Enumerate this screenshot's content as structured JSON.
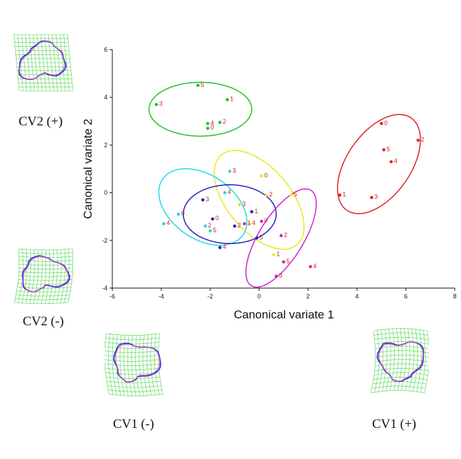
{
  "chart_data": {
    "type": "scatter",
    "title": "",
    "xlabel": "Canonical variate 1",
    "ylabel": "Canonical variate 2",
    "xlim": [
      -6,
      8
    ],
    "ylim": [
      -4,
      6
    ],
    "xticks": [
      "-6",
      "-4",
      "-2",
      "0",
      "2",
      "4",
      "6",
      "8"
    ],
    "yticks": [
      "-4",
      "-2",
      "0",
      "2",
      "4",
      "6"
    ],
    "grid": false,
    "series": [
      {
        "name": "green",
        "color": "#22c022",
        "ellipse": {
          "cx": -2.4,
          "cy": 3.5,
          "rx": 2.1,
          "ry": 1.1,
          "angle": 0
        },
        "points": [
          {
            "x": -4.2,
            "y": 3.7,
            "label": "3"
          },
          {
            "x": -2.5,
            "y": 4.5,
            "label": "5"
          },
          {
            "x": -1.3,
            "y": 3.9,
            "label": "1"
          },
          {
            "x": -2.1,
            "y": 2.9,
            "label": "4"
          },
          {
            "x": -1.6,
            "y": 2.95,
            "label": "2"
          },
          {
            "x": -2.1,
            "y": 2.7,
            "label": "0"
          }
        ]
      },
      {
        "name": "red",
        "color": "#e02020",
        "ellipse": {
          "cx": 4.9,
          "cy": 1.2,
          "rx": 2.3,
          "ry": 1.3,
          "angle": 55
        },
        "points": [
          {
            "x": 5.0,
            "y": 2.9,
            "label": "0"
          },
          {
            "x": 6.5,
            "y": 2.2,
            "label": "2"
          },
          {
            "x": 5.1,
            "y": 1.8,
            "label": "5"
          },
          {
            "x": 5.4,
            "y": 1.3,
            "label": "4"
          },
          {
            "x": 3.3,
            "y": -0.1,
            "label": "1"
          },
          {
            "x": 4.6,
            "y": -0.2,
            "label": "3"
          }
        ]
      },
      {
        "name": "yellow",
        "color": "#e8e820",
        "ellipse": {
          "cx": 0.0,
          "cy": -0.3,
          "rx": 2.4,
          "ry": 1.3,
          "angle": -50
        },
        "points": [
          {
            "x": -0.8,
            "y": -0.5,
            "label": "3"
          },
          {
            "x": 0.1,
            "y": 0.7,
            "label": "0"
          },
          {
            "x": 0.3,
            "y": -0.1,
            "label": "2"
          },
          {
            "x": 1.3,
            "y": -0.1,
            "label": "5"
          },
          {
            "x": 0.6,
            "y": -2.6,
            "label": "1"
          },
          {
            "x": -0.4,
            "y": -1.3,
            "label": "4"
          }
        ]
      },
      {
        "name": "cyan",
        "color": "#20d8e8",
        "ellipse": {
          "cx": -2.3,
          "cy": -0.6,
          "rx": 2.0,
          "ry": 1.3,
          "angle": -35
        },
        "points": [
          {
            "x": -1.2,
            "y": 0.9,
            "label": "3"
          },
          {
            "x": -1.4,
            "y": 0.0,
            "label": "4"
          },
          {
            "x": -3.3,
            "y": -0.9,
            "label": "0"
          },
          {
            "x": -3.9,
            "y": -1.3,
            "label": "4"
          },
          {
            "x": -2.2,
            "y": -1.4,
            "label": "2"
          },
          {
            "x": -2.0,
            "y": -1.6,
            "label": "5"
          }
        ]
      },
      {
        "name": "blue",
        "color": "#2020c0",
        "ellipse": {
          "cx": -1.2,
          "cy": -0.9,
          "rx": 1.9,
          "ry": 1.2,
          "angle": 0
        },
        "points": [
          {
            "x": -2.3,
            "y": -0.3,
            "label": "3"
          },
          {
            "x": -1.9,
            "y": -1.1,
            "label": "0"
          },
          {
            "x": -1.0,
            "y": -1.4,
            "label": "2"
          },
          {
            "x": -0.3,
            "y": -0.8,
            "label": "1"
          },
          {
            "x": -0.1,
            "y": -1.9,
            "label": "5"
          },
          {
            "x": -1.6,
            "y": -2.3,
            "label": "4"
          }
        ]
      },
      {
        "name": "magenta",
        "color": "#d020d0",
        "ellipse": {
          "cx": 0.9,
          "cy": -1.9,
          "rx": 2.3,
          "ry": 0.9,
          "angle": 58
        },
        "points": [
          {
            "x": -0.6,
            "y": -1.3,
            "label": "1"
          },
          {
            "x": 0.1,
            "y": -1.2,
            "label": "0"
          },
          {
            "x": 0.9,
            "y": -1.8,
            "label": "2"
          },
          {
            "x": 1.0,
            "y": -2.9,
            "label": "5"
          },
          {
            "x": 0.7,
            "y": -3.5,
            "label": "3"
          },
          {
            "x": 2.1,
            "y": -3.1,
            "label": "4"
          }
        ]
      }
    ]
  },
  "panels": {
    "cv2_plus": "CV2 (+)",
    "cv2_minus": "CV2 (-)",
    "cv1_minus": "CV1 (-)",
    "cv1_plus": "CV1 (+)"
  },
  "colors": {
    "grid": "#4cd24c",
    "outline_blue": "#2a2ae0",
    "outline_magenta": "#e040c0"
  }
}
